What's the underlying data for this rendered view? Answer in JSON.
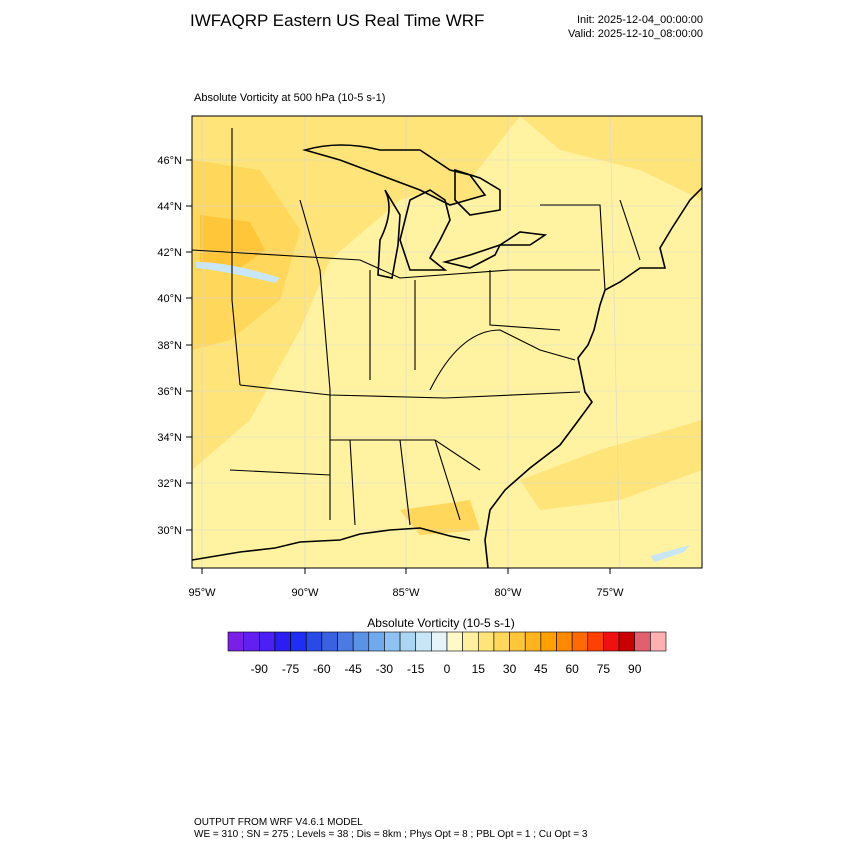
{
  "header": {
    "title": "IWFAQRP Eastern US Real Time WRF",
    "init": "Init: 2025-12-04_00:00:00",
    "valid": "Valid: 2025-12-10_08:00:00"
  },
  "map": {
    "title": "Absolute Vorticity at 500 hPa   (10-5 s-1)",
    "lat_labels": [
      "46°N",
      "44°N",
      "42°N",
      "40°N",
      "38°N",
      "36°N",
      "34°N",
      "32°N",
      "30°N"
    ],
    "lon_labels": [
      "95°W",
      "90°W",
      "85°W",
      "80°W",
      "75°W"
    ]
  },
  "colorbar": {
    "title": "Absolute Vorticity  (10-5 s-1)",
    "labels": [
      -90,
      -75,
      -60,
      -45,
      -30,
      -15,
      0,
      15,
      30,
      45,
      60,
      75,
      90
    ],
    "colors": [
      "#7a1fe8",
      "#6220f0",
      "#4a20f5",
      "#2a1ef0",
      "#1e2ef5",
      "#2a4ae8",
      "#3a62e0",
      "#4a7ae2",
      "#5a92e6",
      "#70aaec",
      "#8ec2f0",
      "#aad6f4",
      "#c8e6f6",
      "#e6f4fa",
      "#fff9c8",
      "#fff0a0",
      "#ffe47a",
      "#ffd75a",
      "#ffc63a",
      "#ffb41e",
      "#ffa000",
      "#ff8a00",
      "#ff6a00",
      "#ff4000",
      "#f01010",
      "#c80000",
      "#e06070",
      "#ffb0b0"
    ]
  },
  "footer": {
    "lines": [
      "OUTPUT FROM WRF V4.6.1 MODEL",
      "WE = 310 ; SN = 275 ; Levels = 38 ; Dis = 8km ; Phys Opt = 8 ; PBL Opt = 1 ; Cu Opt = 3"
    ]
  }
}
